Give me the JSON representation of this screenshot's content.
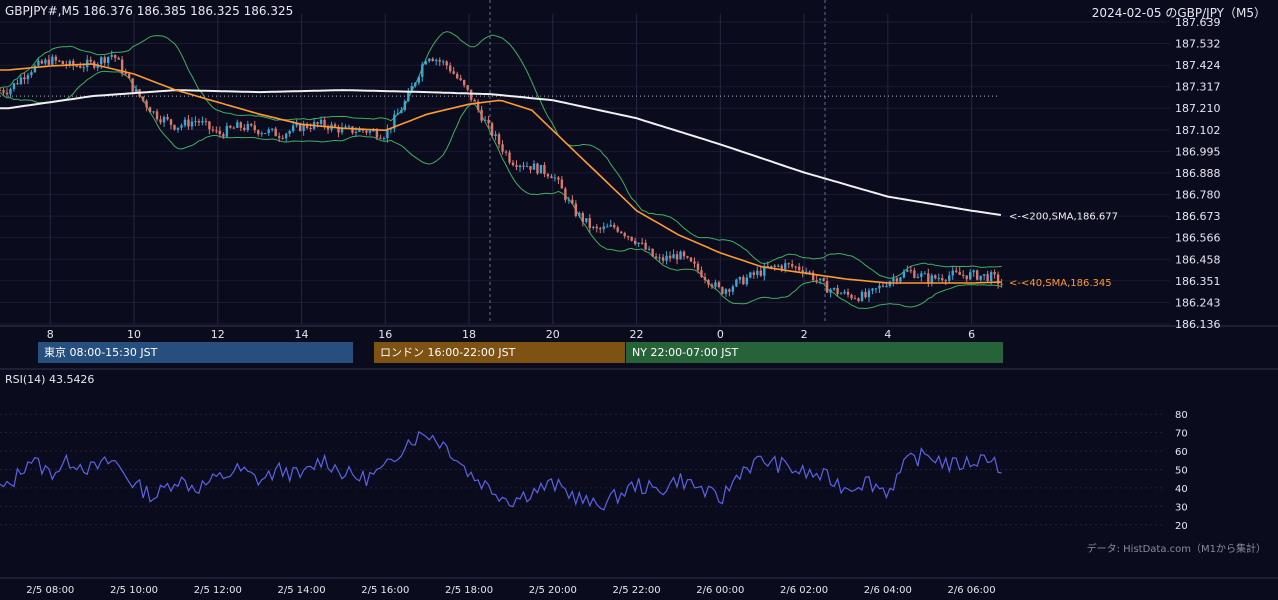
{
  "header": {
    "title": "GBPJPY#,M5 186.376 186.385 186.325 186.325",
    "subtitle": "2024-02-05 のGBP/JPY（M5）"
  },
  "sessions": [
    {
      "label": "東京 08:00-15:30 JST",
      "color": "#264f7e"
    },
    {
      "label": "ロンドン 16:00-22:00 JST",
      "color": "#7d5212"
    },
    {
      "label": "NY 22:00-07:00 JST",
      "color": "#276338"
    }
  ],
  "rsi": {
    "title": "RSI(14) 43.5426"
  },
  "credit": "データ: HistData.com（M1から集計）",
  "colors": {
    "background": "#0b0b1e",
    "up": "#3aa7d6",
    "down": "#d9786c",
    "sma200": "#f0f0f0",
    "sma40": "#ff9a30",
    "bollinger": "#3fae5e",
    "rsi_line": "#5b63e6"
  },
  "chart_data": [
    {
      "type": "candlestick",
      "title": "GBPJPY#,M5 186.376 186.385 186.325 186.325",
      "x_ticks": [
        "8",
        "10",
        "12",
        "14",
        "16",
        "18",
        "20",
        "22",
        "0",
        "2",
        "4",
        "6"
      ],
      "y_ticks": [
        187.639,
        187.532,
        187.424,
        187.317,
        187.21,
        187.102,
        186.995,
        186.888,
        186.78,
        186.673,
        186.566,
        186.458,
        186.351,
        186.243,
        186.136
      ],
      "ylim": [
        186.136,
        187.639
      ],
      "indicators": [
        {
          "name": "SMA(200)",
          "label": "<-<200,SMA,186.677",
          "last": 186.677
        },
        {
          "name": "SMA(40)",
          "label": "<-<40,SMA,186.345",
          "last": 186.345
        },
        {
          "name": "Bollinger Bands"
        }
      ],
      "price_keypoints": {
        "x_hours": [
          7.0,
          7.5,
          8.0,
          8.5,
          9.0,
          9.5,
          10.0,
          10.5,
          11.0,
          11.5,
          12.0,
          12.5,
          13.0,
          13.5,
          14.0,
          14.5,
          15.0,
          15.5,
          16.0,
          16.5,
          17.0,
          17.5,
          18.0,
          18.5,
          19.0,
          19.5,
          20.0,
          20.5,
          21.0,
          21.5,
          22.0,
          22.5,
          23.0,
          23.5,
          24.0,
          24.5,
          25.0,
          25.5,
          26.0,
          26.5,
          27.0,
          27.5,
          28.0,
          28.5,
          29.0,
          29.5,
          30.0,
          30.5,
          30.75
        ],
        "close": [
          187.3,
          187.4,
          187.45,
          187.42,
          187.43,
          187.48,
          187.3,
          187.18,
          187.12,
          187.15,
          187.08,
          187.12,
          187.1,
          187.08,
          187.12,
          187.13,
          187.1,
          187.1,
          187.08,
          187.25,
          187.48,
          187.42,
          187.28,
          187.1,
          186.95,
          186.92,
          186.88,
          186.7,
          186.6,
          186.62,
          186.55,
          186.45,
          186.48,
          186.4,
          186.3,
          186.35,
          186.4,
          186.43,
          186.41,
          186.32,
          186.28,
          186.27,
          186.35,
          186.4,
          186.36,
          186.38,
          186.38,
          186.37,
          186.33
        ]
      },
      "sma200_keypoints": {
        "x_hours": [
          7.0,
          9.0,
          11.0,
          13.0,
          15.0,
          17.0,
          18.5,
          20.0,
          22.0,
          24.0,
          26.0,
          28.0,
          30.0,
          30.75
        ],
        "values": [
          187.21,
          187.27,
          187.3,
          187.29,
          187.3,
          187.29,
          187.28,
          187.25,
          187.16,
          187.03,
          186.89,
          186.77,
          186.7,
          186.677
        ]
      },
      "sma40_keypoints": {
        "x_hours": [
          7.0,
          8.0,
          9.0,
          10.0,
          11.0,
          12.0,
          13.0,
          14.0,
          15.0,
          16.0,
          17.0,
          18.0,
          18.75,
          19.5,
          20.0,
          21.0,
          22.0,
          23.0,
          24.0,
          25.0,
          26.0,
          27.0,
          28.0,
          29.0,
          30.0,
          30.75
        ],
        "values": [
          187.4,
          187.42,
          187.43,
          187.38,
          187.3,
          187.24,
          187.18,
          187.13,
          187.11,
          187.1,
          187.18,
          187.23,
          187.25,
          187.2,
          187.1,
          186.9,
          186.7,
          186.58,
          186.49,
          186.42,
          186.39,
          186.36,
          186.34,
          186.34,
          186.34,
          186.345
        ]
      },
      "x_window_hours": [
        6.8,
        30.75
      ],
      "rsi_panel": {
        "name": "RSI(14)",
        "last": 43.5426,
        "y_ticks": [
          80,
          70,
          60,
          50,
          40,
          30,
          20
        ],
        "ylim": [
          15,
          85
        ],
        "keypoints": {
          "x_hours": [
            7.0,
            7.5,
            8.0,
            8.5,
            9.0,
            9.5,
            10.0,
            10.5,
            11.0,
            11.5,
            12.0,
            12.5,
            13.0,
            13.5,
            14.0,
            14.5,
            15.0,
            15.5,
            16.0,
            16.5,
            17.0,
            17.5,
            18.0,
            18.5,
            19.0,
            19.5,
            20.0,
            20.5,
            21.0,
            21.5,
            22.0,
            22.5,
            23.0,
            23.5,
            24.0,
            24.5,
            25.0,
            25.5,
            26.0,
            26.5,
            27.0,
            27.5,
            28.0,
            28.5,
            29.0,
            29.5,
            30.0,
            30.5,
            30.75
          ],
          "values": [
            40,
            56,
            48,
            55,
            50,
            55,
            42,
            35,
            45,
            40,
            45,
            50,
            44,
            50,
            46,
            56,
            48,
            45,
            50,
            65,
            70,
            62,
            48,
            40,
            33,
            38,
            42,
            36,
            30,
            35,
            42,
            38,
            45,
            40,
            33,
            50,
            55,
            52,
            48,
            46,
            40,
            44,
            38,
            55,
            58,
            52,
            54,
            58,
            44
          ]
        }
      }
    }
  ],
  "time_labels": [
    "2/5 08:00",
    "2/5 10:00",
    "2/5 12:00",
    "2/5 14:00",
    "2/5 16:00",
    "2/5 18:00",
    "2/5 20:00",
    "2/5 22:00",
    "2/6 00:00",
    "2/6 02:00",
    "2/6 04:00",
    "2/6 06:00"
  ]
}
